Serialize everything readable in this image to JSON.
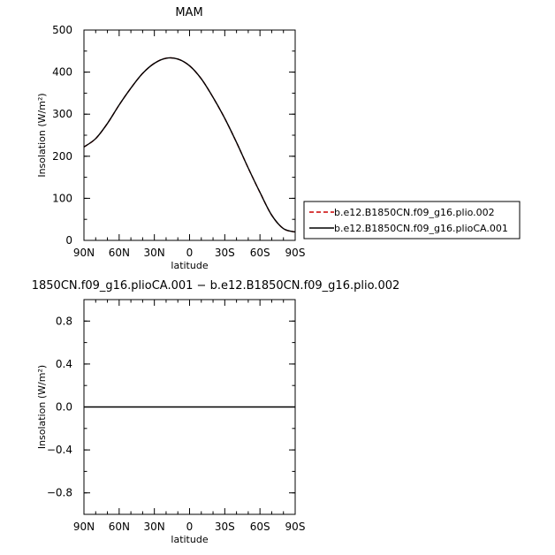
{
  "chart_data": [
    {
      "type": "line",
      "title": "MAM",
      "xlabel": "latitude",
      "ylabel": "Insolation (W/m²)",
      "xlim": [
        90,
        -90
      ],
      "ylim": [
        0,
        500
      ],
      "x_ticks": [
        {
          "value": 90,
          "label": "90N"
        },
        {
          "value": 60,
          "label": "60N"
        },
        {
          "value": 30,
          "label": "30N"
        },
        {
          "value": 0,
          "label": "0"
        },
        {
          "value": -30,
          "label": "30S"
        },
        {
          "value": -60,
          "label": "60S"
        },
        {
          "value": -90,
          "label": "90S"
        }
      ],
      "y_ticks": [
        {
          "value": 0,
          "label": "0"
        },
        {
          "value": 100,
          "label": "100"
        },
        {
          "value": 200,
          "label": "200"
        },
        {
          "value": 300,
          "label": "300"
        },
        {
          "value": 400,
          "label": "400"
        },
        {
          "value": 500,
          "label": "500"
        }
      ],
      "x": [
        90,
        80,
        70,
        60,
        50,
        40,
        30,
        20,
        10,
        0,
        -10,
        -20,
        -30,
        -40,
        -50,
        -60,
        -70,
        -80,
        -90
      ],
      "series": [
        {
          "name": "b.e12.B1850CN.f09_g16.plio.002",
          "color": "#cc0000",
          "dash": "dashed",
          "values": [
            222,
            242,
            278,
            322,
            362,
            397,
            421,
            433,
            431,
            415,
            384,
            340,
            290,
            233,
            172,
            114,
            60,
            28,
            20
          ]
        },
        {
          "name": "b.e12.B1850CN.f09_g16.plioCA.001",
          "color": "#000000",
          "dash": "solid",
          "values": [
            222,
            242,
            278,
            322,
            362,
            397,
            421,
            433,
            431,
            415,
            384,
            340,
            290,
            233,
            172,
            114,
            60,
            28,
            20
          ]
        }
      ],
      "legend": {
        "placement": "right",
        "entries": [
          "b.e12.B1850CN.f09_g16.plio.002",
          "b.e12.B1850CN.f09_g16.plioCA.001"
        ]
      }
    },
    {
      "type": "line",
      "title": "1850CN.f09_g16.plioCA.001 − b.e12.B1850CN.f09_g16.plio.002",
      "xlabel": "latitude",
      "ylabel": "Insolation (W/m²)",
      "xlim": [
        90,
        -90
      ],
      "ylim": [
        -1,
        1
      ],
      "x_ticks": [
        {
          "value": 90,
          "label": "90N"
        },
        {
          "value": 60,
          "label": "60N"
        },
        {
          "value": 30,
          "label": "30N"
        },
        {
          "value": 0,
          "label": "0"
        },
        {
          "value": -30,
          "label": "30S"
        },
        {
          "value": -60,
          "label": "60S"
        },
        {
          "value": -90,
          "label": "90S"
        }
      ],
      "y_ticks": [
        {
          "value": -0.8,
          "label": "−0.8"
        },
        {
          "value": -0.4,
          "label": "−0.4"
        },
        {
          "value": 0.0,
          "label": "0.0"
        },
        {
          "value": 0.4,
          "label": "0.4"
        },
        {
          "value": 0.8,
          "label": "0.8"
        }
      ],
      "x": [
        90,
        -90
      ],
      "series": [
        {
          "color": "#000000",
          "dash": "solid",
          "values": [
            0,
            0
          ]
        }
      ]
    }
  ]
}
